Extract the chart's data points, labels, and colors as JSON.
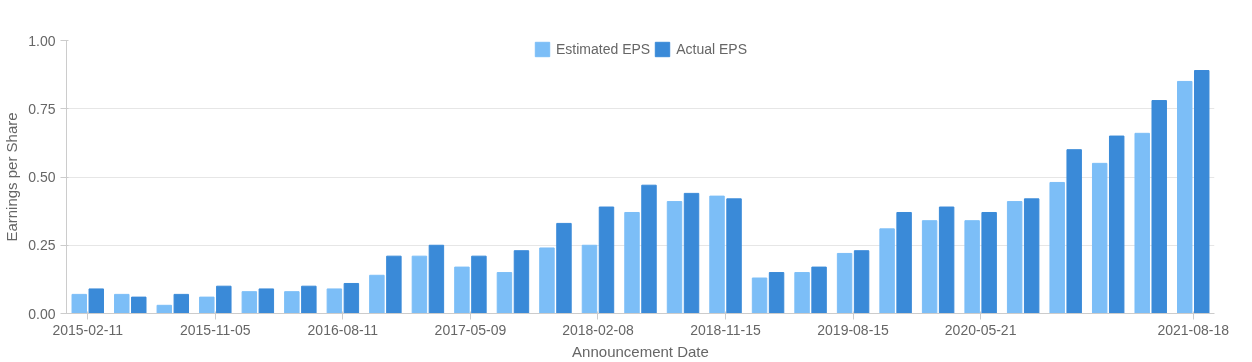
{
  "chart_data": {
    "type": "bar",
    "xlabel": "Announcement Date",
    "ylabel": "Earnings per Share",
    "categories": [
      "2015-02-11",
      null,
      null,
      "2015-11-05",
      null,
      null,
      "2016-08-11",
      null,
      null,
      "2017-05-09",
      null,
      null,
      "2018-02-08",
      null,
      null,
      "2018-11-15",
      null,
      null,
      "2019-08-15",
      null,
      null,
      "2020-05-21",
      null,
      null,
      null,
      null,
      "2021-08-18"
    ],
    "series": [
      {
        "name": "Estimated EPS",
        "color": "#7cbef7",
        "values": [
          0.07,
          0.07,
          0.03,
          0.06,
          0.08,
          0.08,
          0.09,
          0.14,
          0.21,
          0.17,
          0.15,
          0.24,
          0.25,
          0.37,
          0.41,
          0.43,
          0.13,
          0.15,
          0.22,
          0.31,
          0.34,
          0.34,
          0.41,
          0.48,
          0.55,
          0.66,
          0.85
        ]
      },
      {
        "name": "Actual EPS",
        "color": "#3a8ad8",
        "values": [
          0.09,
          0.06,
          0.07,
          0.1,
          0.09,
          0.1,
          0.11,
          0.21,
          0.25,
          0.21,
          0.23,
          0.33,
          0.39,
          0.47,
          0.44,
          0.42,
          0.15,
          0.17,
          0.23,
          0.37,
          0.39,
          0.37,
          0.42,
          0.6,
          0.65,
          0.78,
          0.89
        ]
      }
    ],
    "ylim": [
      0,
      1
    ],
    "yticks": [
      {
        "value": 0,
        "label": "0.00"
      },
      {
        "value": 0.25,
        "label": "0.25"
      },
      {
        "value": 0.5,
        "label": "0.50"
      },
      {
        "value": 0.75,
        "label": "0.75"
      },
      {
        "value": 1,
        "label": "1.00"
      }
    ],
    "grid": "y",
    "legend": "top"
  }
}
